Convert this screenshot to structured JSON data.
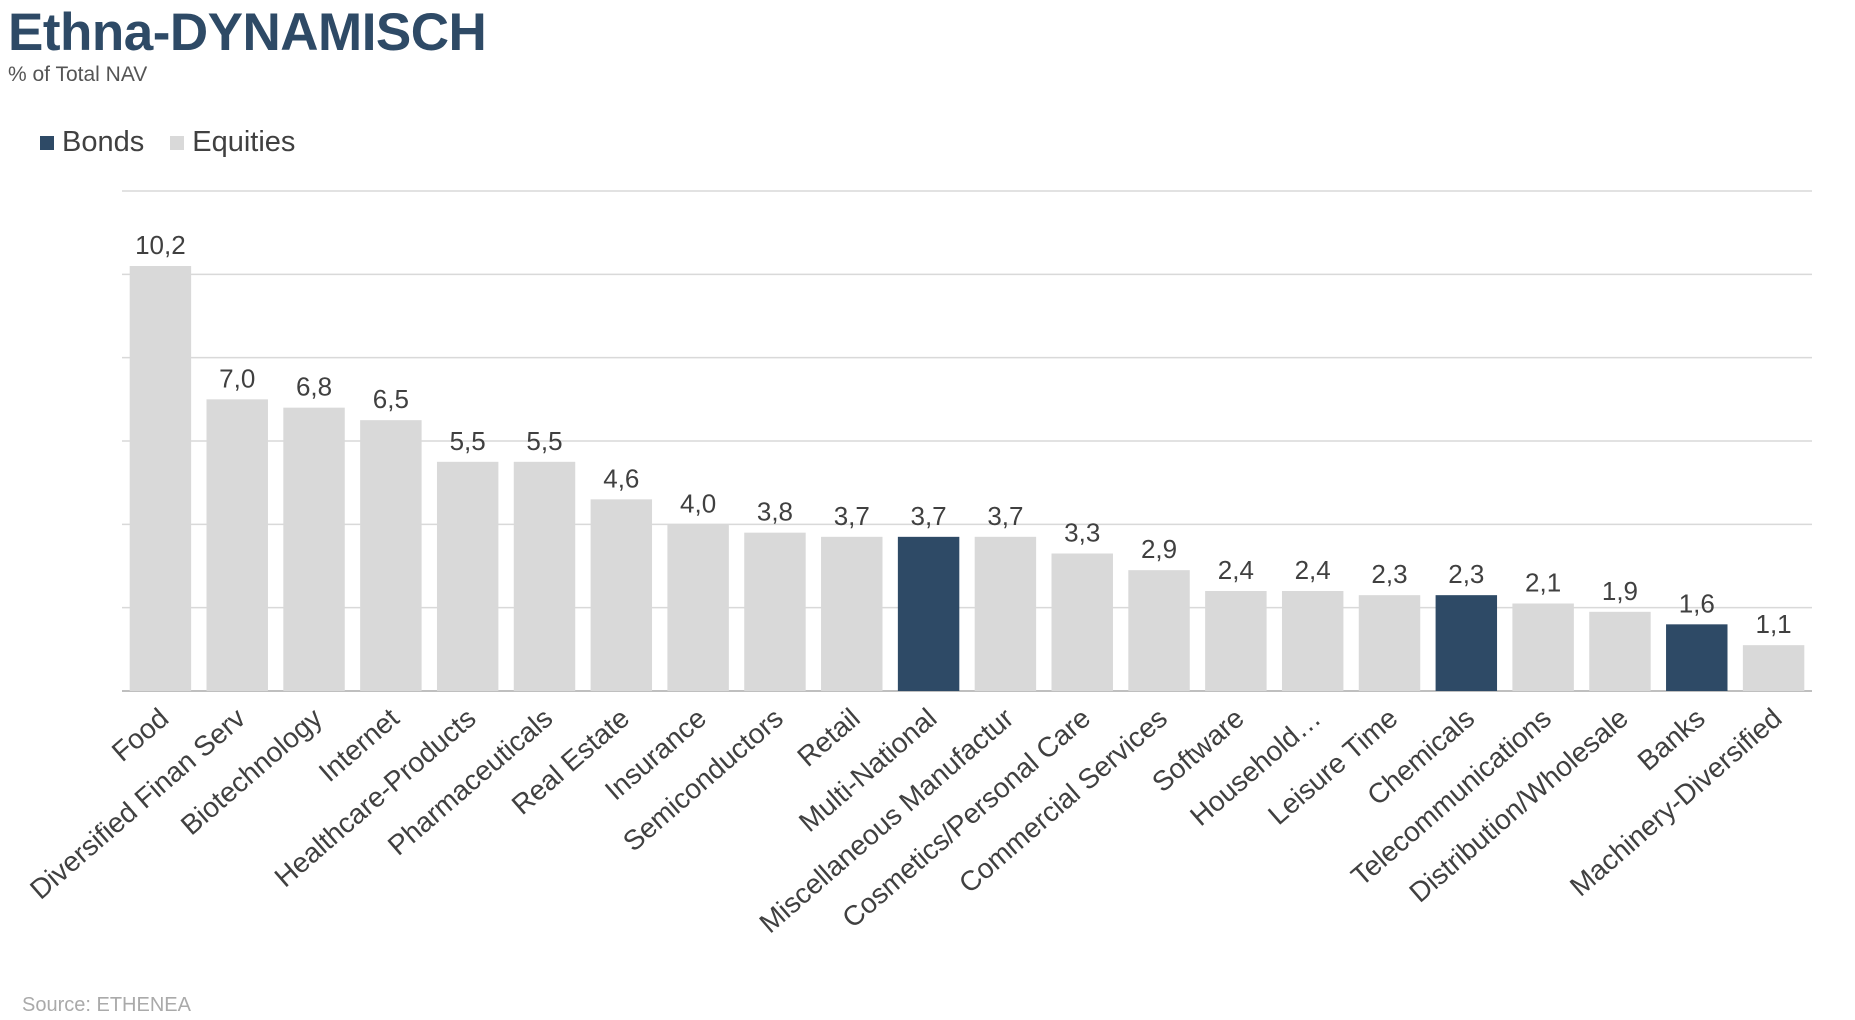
{
  "header": {
    "title": "Ethna-DYNAMISCH",
    "subtitle": "% of Total NAV"
  },
  "legend": {
    "items": [
      {
        "label": "Bonds",
        "color": "#2e4a66"
      },
      {
        "label": "Equities",
        "color": "#d9d9d9"
      }
    ],
    "placement": "top-left"
  },
  "footer": {
    "source": "Source: ETHENEA"
  },
  "chart_data": {
    "type": "bar",
    "title": "Ethna-DYNAMISCH",
    "subtitle": "% of Total NAV",
    "xlabel": "",
    "ylabel": "",
    "ylim": [
      0,
      12
    ],
    "grid": true,
    "legend_placement": "top-left",
    "categories": [
      "Food",
      "Diversified Finan Serv",
      "Biotechnology",
      "Internet",
      "Healthcare-Products",
      "Pharmaceuticals",
      "Real Estate",
      "Insurance",
      "Semiconductors",
      "Retail",
      "Multi-National",
      "Miscellaneous Manufactur",
      "Cosmetics/Personal Care",
      "Commercial Services",
      "Software",
      "Household…",
      "Leisure Time",
      "Chemicals",
      "Telecommunications",
      "Distribution/Wholesale",
      "Banks",
      "Machinery-Diversified"
    ],
    "values": [
      10.2,
      7.0,
      6.8,
      6.5,
      5.5,
      5.5,
      4.6,
      4.0,
      3.8,
      3.7,
      3.7,
      3.7,
      3.3,
      2.9,
      2.4,
      2.4,
      2.3,
      2.3,
      2.1,
      1.9,
      1.6,
      1.1
    ],
    "value_labels": [
      "10,2",
      "7,0",
      "6,8",
      "6,5",
      "5,5",
      "5,5",
      "4,6",
      "4,0",
      "3,8",
      "3,7",
      "3,7",
      "3,7",
      "3,3",
      "2,9",
      "2,4",
      "2,4",
      "2,3",
      "2,3",
      "2,1",
      "1,9",
      "1,6",
      "1,1"
    ],
    "asset_class": [
      "Equities",
      "Equities",
      "Equities",
      "Equities",
      "Equities",
      "Equities",
      "Equities",
      "Equities",
      "Equities",
      "Equities",
      "Bonds",
      "Equities",
      "Equities",
      "Equities",
      "Equities",
      "Equities",
      "Equities",
      "Bonds",
      "Equities",
      "Equities",
      "Bonds",
      "Equities"
    ],
    "series_colors": {
      "Bonds": "#2e4a66",
      "Equities": "#d9d9d9"
    }
  }
}
